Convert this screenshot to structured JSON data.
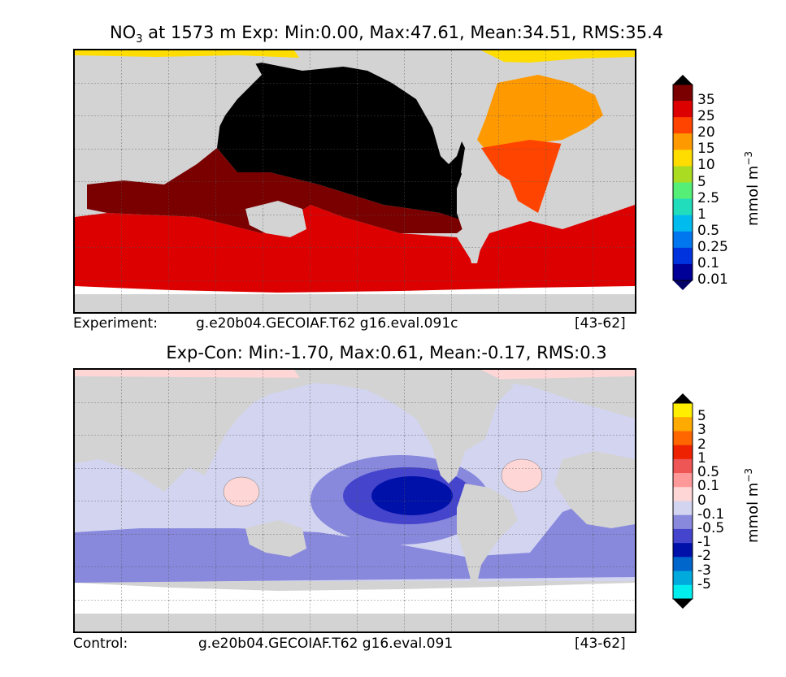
{
  "experiment": {
    "title": "NO3 at 1573 m Exp: Min:0.00, Max:47.61, Mean:34.51, RMS:35.4",
    "title_main": "NO",
    "title_sub": "3",
    "title_rest": " at 1573 m Exp: Min:0.00, Max:47.61, Mean:34.51, RMS:35.4",
    "footer_label": "Experiment:",
    "footer_case": "g.e20b04.GECOIAF.T62 g16.eval.091c",
    "footer_years": "[43-62]"
  },
  "difference": {
    "title": "Exp-Con: Min:-1.70, Max:0.61, Mean:-0.17, RMS:0.3",
    "footer_label": "Control:",
    "footer_case": "g.e20b04.GECOIAF.T62 g16.eval.091",
    "footer_years": "[43-62]"
  },
  "colorbars": {
    "units": "mmol m",
    "units_exp": "−3",
    "experiment": {
      "ticks": [
        "35",
        "25",
        "20",
        "15",
        "10",
        "5",
        "2.5",
        "1",
        "0.5",
        "0.25",
        "0.1",
        "0.01"
      ],
      "colors": [
        "#7a0000",
        "#dd0000",
        "#ff4400",
        "#ff9900",
        "#ffdd00",
        "#aadd22",
        "#55ee77",
        "#22ddbb",
        "#00bbee",
        "#0077ee",
        "#0033dd",
        "#000099"
      ],
      "over_color": "#000000",
      "under_color": "#000066"
    },
    "difference": {
      "ticks": [
        "5",
        "3",
        "2",
        "1",
        "0.5",
        "0.1",
        "0",
        "-0.1",
        "-0.5",
        "-1",
        "-2",
        "-3",
        "-5"
      ],
      "colors": [
        "#ffee00",
        "#ffaa00",
        "#ff6600",
        "#ee2200",
        "#ee5555",
        "#ff9999",
        "#ffd6d6",
        "#d2d4f0",
        "#8888dd",
        "#4444cc",
        "#0011aa",
        "#0066cc",
        "#00aadd",
        "#00eeee"
      ],
      "over_color": "#000000",
      "under_color": "#000000"
    }
  },
  "fields": {
    "land": "#d3d3d3",
    "experiment_levels": {
      "pacific_core": "#000000",
      "indian_and_east_pacific": "#7a0000",
      "southern_ocean": "#dd0000",
      "central_atlantic": "#ff4400",
      "north_atlantic": "#ff9900",
      "arctic": "#ffdd00"
    },
    "difference_levels": {
      "background": "#d2d4f0",
      "southern_band": "#8888dd",
      "east_pacific_low": "#4444cc",
      "east_pacific_core": "#0011aa",
      "positive_patches": "#ffd6d6"
    }
  }
}
